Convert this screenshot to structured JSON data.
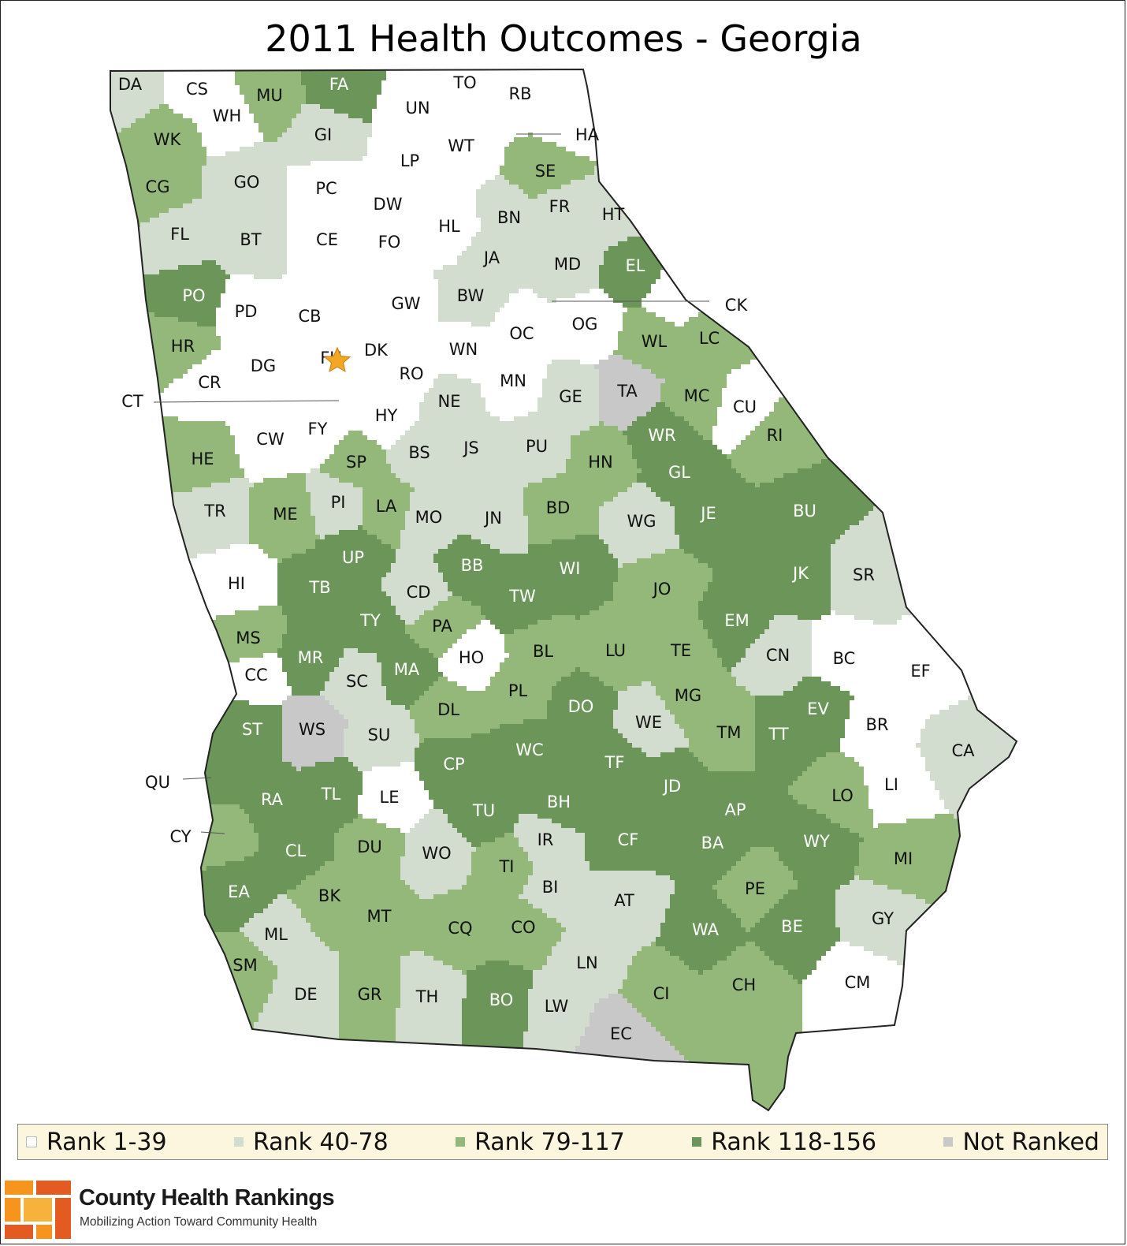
{
  "title": "2011 Health Outcomes - Georgia",
  "colors": {
    "rank_1_39": "#ffffff",
    "rank_40_78": "#d3ddcf",
    "rank_79_117": "#93b87a",
    "rank_118_156": "#6c9659",
    "not_ranked": "#c8c8c8",
    "border": "#3a3a3a",
    "star": "#f5a623"
  },
  "legend": [
    {
      "label": "Rank 1-39",
      "class": "r1"
    },
    {
      "label": "Rank 40-78",
      "class": "r2"
    },
    {
      "label": "Rank 79-117",
      "class": "r3"
    },
    {
      "label": "Rank 118-156",
      "class": "r4"
    },
    {
      "label": "Not Ranked",
      "class": "nr"
    }
  ],
  "brand": {
    "name": "County Health Rankings",
    "tagline": "Mobilizing Action Toward Community Health"
  },
  "marker": {
    "county": "FU",
    "icon": "star-icon"
  },
  "counties": [
    {
      "code": "DA",
      "class": "r2"
    },
    {
      "code": "CS",
      "class": "r1"
    },
    {
      "code": "WH",
      "class": "r1"
    },
    {
      "code": "MU",
      "class": "r3"
    },
    {
      "code": "FA",
      "class": "r4"
    },
    {
      "code": "UN",
      "class": "r1"
    },
    {
      "code": "TO",
      "class": "r1"
    },
    {
      "code": "RB",
      "class": "r1"
    },
    {
      "code": "WK",
      "class": "r3"
    },
    {
      "code": "GI",
      "class": "r2"
    },
    {
      "code": "LP",
      "class": "r1"
    },
    {
      "code": "WT",
      "class": "r1"
    },
    {
      "code": "HA",
      "class": "r1"
    },
    {
      "code": "CG",
      "class": "r3"
    },
    {
      "code": "GO",
      "class": "r2"
    },
    {
      "code": "PC",
      "class": "r1"
    },
    {
      "code": "DW",
      "class": "r1"
    },
    {
      "code": "SE",
      "class": "r3"
    },
    {
      "code": "FL",
      "class": "r2"
    },
    {
      "code": "BT",
      "class": "r2"
    },
    {
      "code": "CE",
      "class": "r1"
    },
    {
      "code": "FO",
      "class": "r1"
    },
    {
      "code": "HL",
      "class": "r1"
    },
    {
      "code": "BN",
      "class": "r2"
    },
    {
      "code": "FR",
      "class": "r2"
    },
    {
      "code": "HT",
      "class": "r2"
    },
    {
      "code": "JA",
      "class": "r2"
    },
    {
      "code": "MD",
      "class": "r2"
    },
    {
      "code": "EL",
      "class": "r4"
    },
    {
      "code": "PO",
      "class": "r4"
    },
    {
      "code": "PD",
      "class": "r1"
    },
    {
      "code": "CB",
      "class": "r1"
    },
    {
      "code": "GW",
      "class": "r1"
    },
    {
      "code": "BW",
      "class": "r2"
    },
    {
      "code": "OG",
      "class": "r1"
    },
    {
      "code": "CK",
      "class": "r1"
    },
    {
      "code": "HR",
      "class": "r3"
    },
    {
      "code": "DG",
      "class": "r1"
    },
    {
      "code": "FU",
      "class": "r1"
    },
    {
      "code": "DK",
      "class": "r1"
    },
    {
      "code": "WN",
      "class": "r1"
    },
    {
      "code": "OC",
      "class": "r1"
    },
    {
      "code": "WL",
      "class": "r3"
    },
    {
      "code": "LC",
      "class": "r3"
    },
    {
      "code": "CR",
      "class": "r1"
    },
    {
      "code": "RO",
      "class": "r1"
    },
    {
      "code": "MN",
      "class": "r1"
    },
    {
      "code": "TA",
      "class": "nr"
    },
    {
      "code": "CT",
      "class": "r1"
    },
    {
      "code": "NE",
      "class": "r2"
    },
    {
      "code": "GE",
      "class": "r2"
    },
    {
      "code": "MC",
      "class": "r3"
    },
    {
      "code": "CU",
      "class": "r1"
    },
    {
      "code": "HY",
      "class": "r1"
    },
    {
      "code": "CW",
      "class": "r1"
    },
    {
      "code": "FY",
      "class": "r1"
    },
    {
      "code": "WR",
      "class": "r4"
    },
    {
      "code": "RI",
      "class": "r3"
    },
    {
      "code": "HE",
      "class": "r3"
    },
    {
      "code": "BS",
      "class": "r2"
    },
    {
      "code": "JS",
      "class": "r2"
    },
    {
      "code": "PU",
      "class": "r2"
    },
    {
      "code": "SP",
      "class": "r3"
    },
    {
      "code": "HN",
      "class": "r3"
    },
    {
      "code": "GL",
      "class": "r4"
    },
    {
      "code": "TR",
      "class": "r2"
    },
    {
      "code": "ME",
      "class": "r3"
    },
    {
      "code": "PI",
      "class": "r2"
    },
    {
      "code": "LA",
      "class": "r3"
    },
    {
      "code": "MO",
      "class": "r2"
    },
    {
      "code": "JN",
      "class": "r2"
    },
    {
      "code": "BD",
      "class": "r3"
    },
    {
      "code": "WG",
      "class": "r2"
    },
    {
      "code": "JE",
      "class": "r4"
    },
    {
      "code": "BU",
      "class": "r4"
    },
    {
      "code": "UP",
      "class": "r4"
    },
    {
      "code": "BB",
      "class": "r4"
    },
    {
      "code": "WI",
      "class": "r4"
    },
    {
      "code": "HI",
      "class": "r1"
    },
    {
      "code": "TB",
      "class": "r4"
    },
    {
      "code": "CD",
      "class": "r2"
    },
    {
      "code": "TW",
      "class": "r4"
    },
    {
      "code": "JO",
      "class": "r3"
    },
    {
      "code": "JK",
      "class": "r4"
    },
    {
      "code": "SR",
      "class": "r2"
    },
    {
      "code": "TY",
      "class": "r4"
    },
    {
      "code": "EM",
      "class": "r4"
    },
    {
      "code": "MS",
      "class": "r3"
    },
    {
      "code": "PA",
      "class": "r3"
    },
    {
      "code": "LU",
      "class": "r3"
    },
    {
      "code": "MR",
      "class": "r4"
    },
    {
      "code": "MA",
      "class": "r4"
    },
    {
      "code": "HO",
      "class": "r1"
    },
    {
      "code": "BL",
      "class": "r3"
    },
    {
      "code": "TE",
      "class": "r3"
    },
    {
      "code": "CN",
      "class": "r2"
    },
    {
      "code": "BC",
      "class": "r1"
    },
    {
      "code": "EF",
      "class": "r1"
    },
    {
      "code": "CC",
      "class": "r1"
    },
    {
      "code": "SC",
      "class": "r2"
    },
    {
      "code": "PL",
      "class": "r3"
    },
    {
      "code": "MG",
      "class": "r3"
    },
    {
      "code": "DL",
      "class": "r3"
    },
    {
      "code": "DO",
      "class": "r4"
    },
    {
      "code": "EV",
      "class": "r4"
    },
    {
      "code": "ST",
      "class": "r4"
    },
    {
      "code": "WS",
      "class": "nr"
    },
    {
      "code": "WE",
      "class": "r2"
    },
    {
      "code": "BR",
      "class": "r1"
    },
    {
      "code": "SU",
      "class": "r2"
    },
    {
      "code": "TM",
      "class": "r3"
    },
    {
      "code": "TT",
      "class": "r4"
    },
    {
      "code": "CA",
      "class": "r2"
    },
    {
      "code": "WC",
      "class": "r4"
    },
    {
      "code": "CP",
      "class": "r4"
    },
    {
      "code": "TF",
      "class": "r4"
    },
    {
      "code": "QU",
      "class": "r4"
    },
    {
      "code": "LE",
      "class": "r1"
    },
    {
      "code": "RA",
      "class": "r4"
    },
    {
      "code": "TL",
      "class": "r4"
    },
    {
      "code": "JD",
      "class": "r4"
    },
    {
      "code": "LI",
      "class": "r1"
    },
    {
      "code": "LO",
      "class": "r3"
    },
    {
      "code": "AP",
      "class": "r4"
    },
    {
      "code": "TU",
      "class": "r4"
    },
    {
      "code": "BH",
      "class": "r4"
    },
    {
      "code": "CY",
      "class": "r3"
    },
    {
      "code": "IR",
      "class": "r2"
    },
    {
      "code": "CF",
      "class": "r4"
    },
    {
      "code": "WY",
      "class": "r4"
    },
    {
      "code": "DU",
      "class": "r3"
    },
    {
      "code": "CL",
      "class": "r4"
    },
    {
      "code": "BA",
      "class": "r4"
    },
    {
      "code": "MI",
      "class": "r3"
    },
    {
      "code": "WO",
      "class": "r2"
    },
    {
      "code": "TI",
      "class": "r3"
    },
    {
      "code": "EA",
      "class": "r4"
    },
    {
      "code": "BK",
      "class": "r3"
    },
    {
      "code": "BI",
      "class": "r2"
    },
    {
      "code": "AT",
      "class": "r2"
    },
    {
      "code": "PE",
      "class": "r3"
    },
    {
      "code": "MT",
      "class": "r3"
    },
    {
      "code": "GY",
      "class": "r2"
    },
    {
      "code": "CQ",
      "class": "r3"
    },
    {
      "code": "CO",
      "class": "r3"
    },
    {
      "code": "WA",
      "class": "r4"
    },
    {
      "code": "BE",
      "class": "r4"
    },
    {
      "code": "ML",
      "class": "r2"
    },
    {
      "code": "SM",
      "class": "r3"
    },
    {
      "code": "LN",
      "class": "r2"
    },
    {
      "code": "CI",
      "class": "r3"
    },
    {
      "code": "CH",
      "class": "r3"
    },
    {
      "code": "CM",
      "class": "r1"
    },
    {
      "code": "DE",
      "class": "r2"
    },
    {
      "code": "GR",
      "class": "r3"
    },
    {
      "code": "TH",
      "class": "r2"
    },
    {
      "code": "BO",
      "class": "r4"
    },
    {
      "code": "LW",
      "class": "r2"
    },
    {
      "code": "EC",
      "class": "nr"
    }
  ]
}
